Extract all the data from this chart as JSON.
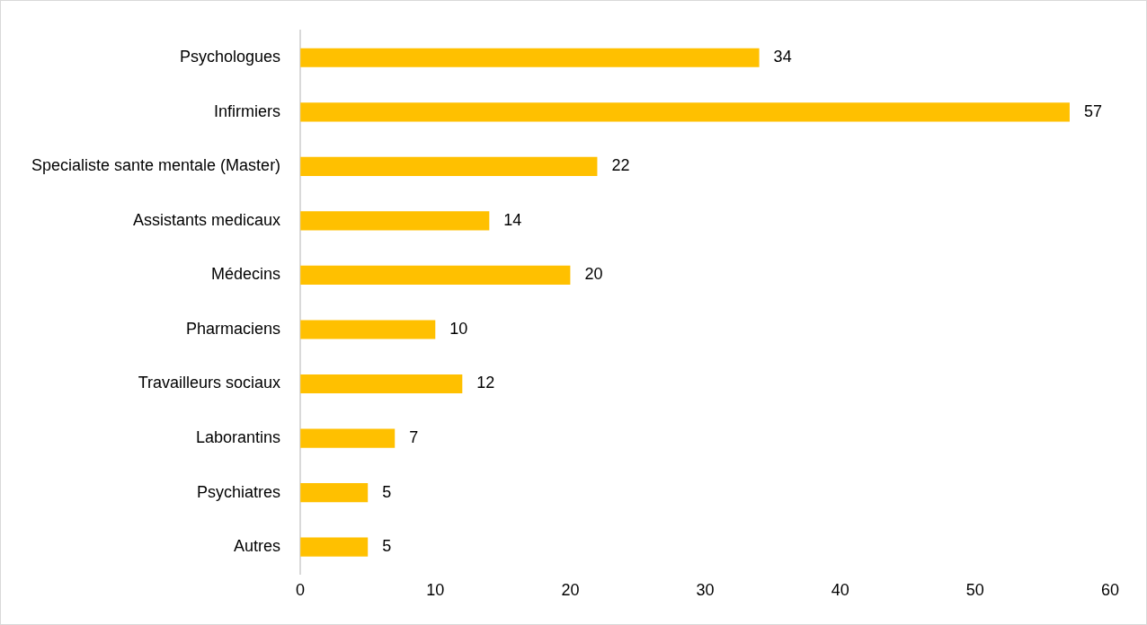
{
  "chart_data": {
    "type": "bar",
    "orientation": "horizontal",
    "categories": [
      "Psychologues",
      "Infirmiers",
      "Specialiste sante mentale (Master)",
      "Assistants medicaux",
      "Médecins",
      "Pharmaciens",
      "Travailleurs sociaux",
      "Laborantins",
      "Psychiatres",
      "Autres"
    ],
    "values": [
      34,
      57,
      22,
      14,
      20,
      10,
      12,
      7,
      5,
      5
    ],
    "color": "#ffc000",
    "xlim": [
      0,
      60
    ],
    "xticks": [
      0,
      10,
      20,
      30,
      40,
      50,
      60
    ],
    "grid": false,
    "legend": false,
    "data_labels": true
  }
}
